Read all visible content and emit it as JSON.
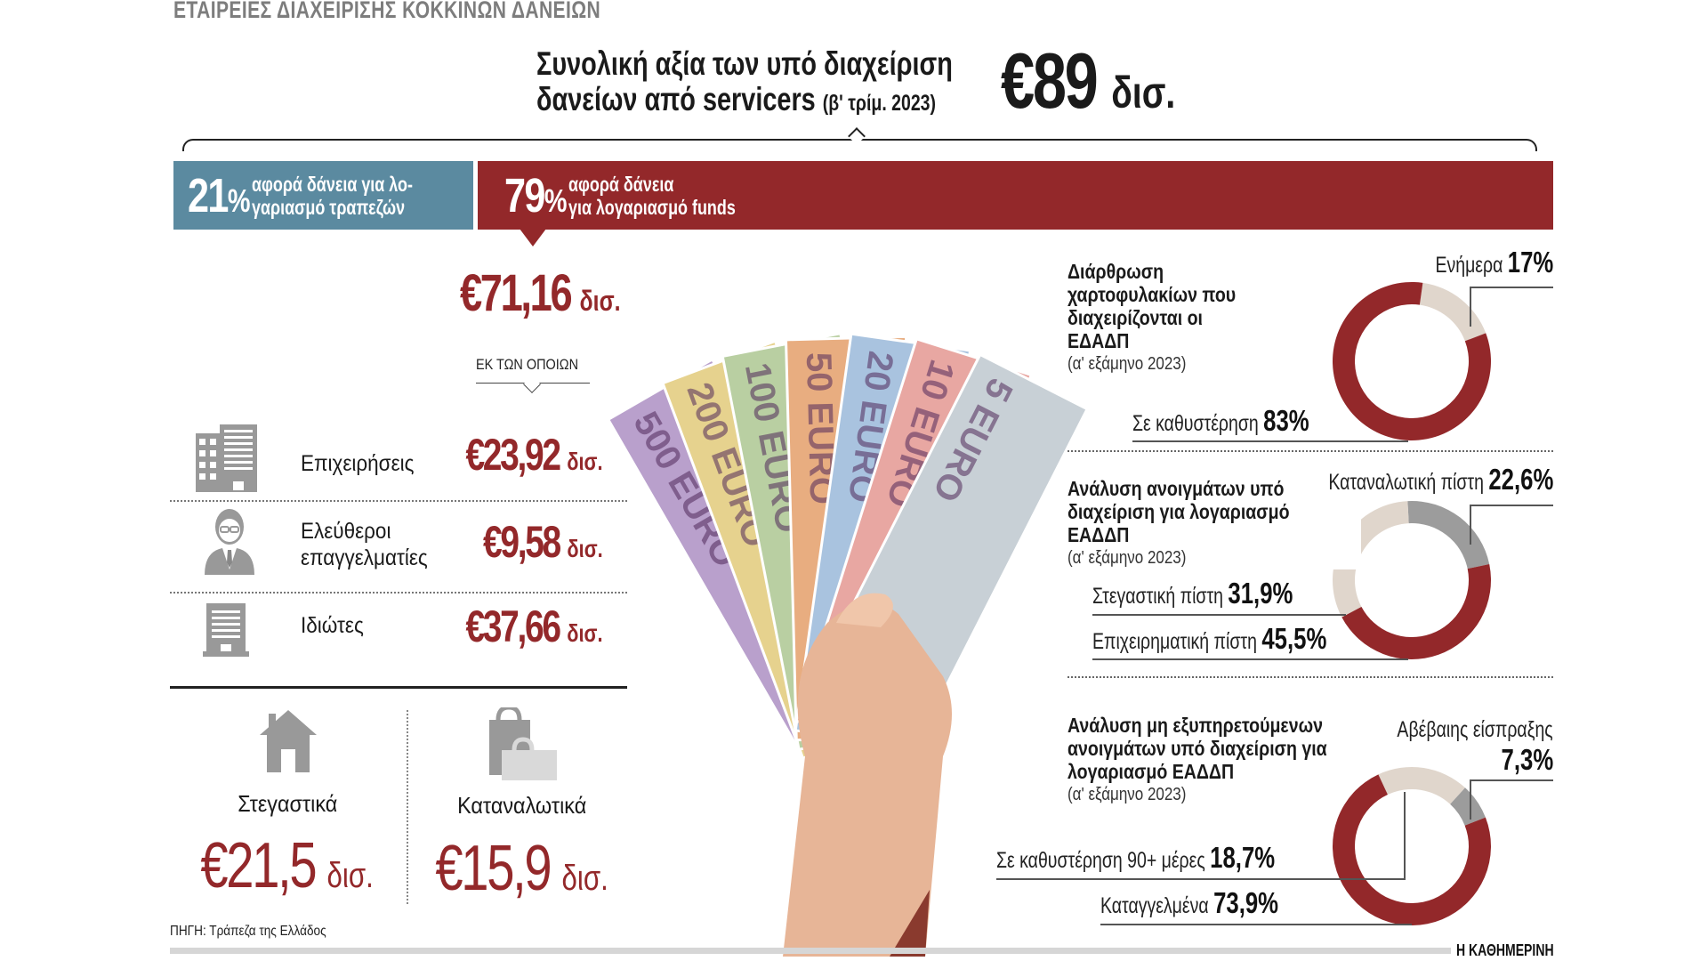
{
  "kicker": "ΕΤΑΙΡΕΙΕΣ ΔΙΑΧΕΙΡΙΣΗΣ ΚΟΚΚΙΝΩΝ ΔΑΝΕΙΩΝ",
  "headline": {
    "line1": "Συνολική αξία των υπό διαχείριση",
    "line2": "δανείων από servicers",
    "period": "(β' τρίμ. 2023)",
    "total": "€89",
    "unit": "δισ."
  },
  "split": {
    "banks": {
      "pct": "21",
      "sign": "%",
      "text1": "αφορά δάνεια για λο-",
      "text2": "γαριασμό τραπεζών"
    },
    "funds": {
      "pct": "79",
      "sign": "%",
      "text1": "αφορά δάνεια",
      "text2": "για λογαριασμό funds"
    }
  },
  "funds_total": {
    "value": "€71,16",
    "unit": "δισ."
  },
  "of_which": "ΕΚ ΤΩΝ ΟΠΟΙΩΝ",
  "breakdown": [
    {
      "icon": "office-building-icon",
      "label1": "Επιχειρήσεις",
      "label2": "",
      "value": "€23,92",
      "unit": "δισ."
    },
    {
      "icon": "professional-person-icon",
      "label1": "Ελεύθεροι",
      "label2": "επαγγελματίες",
      "value": "€9,58",
      "unit": "δισ."
    },
    {
      "icon": "apartment-building-icon",
      "label1": "Ιδιώτες",
      "label2": "",
      "value": "€37,66",
      "unit": "δισ."
    }
  ],
  "categories": [
    {
      "icon": "house-icon",
      "label": "Στεγαστικά",
      "value": "€21,5",
      "unit": "δισ."
    },
    {
      "icon": "shopping-bags-icon",
      "label": "Καταναλωτικά",
      "value": "€15,9",
      "unit": "δισ."
    }
  ],
  "banknotes": [
    "500 EURO",
    "200 EURO",
    "100 EURO",
    "50 EURO",
    "20 EURO",
    "10 EURO",
    "5 EURO"
  ],
  "source": "ΠΗΓΗ: Τράπεζα της Ελλάδος",
  "publisher": "Η ΚΑΘΗΜΕΡΙΝΗ",
  "colors": {
    "red": "#93282a",
    "blue": "#5b8aa0",
    "beige": "#e0d6cc",
    "gray": "#9c9c9c"
  },
  "chart_data": [
    {
      "type": "pie",
      "title": "Διάρθρωση χαρτοφυλακίων που διαχειρίζονται οι ΕΔΑΔΠ",
      "subtitle": "(α' εξάμηνο 2023)",
      "slices": [
        {
          "label": "Ενήμερα",
          "value": 17,
          "text": "17%",
          "color": "#e0d6cc"
        },
        {
          "label": "Σε καθυστέρηση",
          "value": 83,
          "text": "83%",
          "color": "#93282a"
        }
      ]
    },
    {
      "type": "pie",
      "title": "Ανάλυση ανοιγμάτων υπό διαχείριση για λογαριασμό ΕΑΔΔΠ",
      "subtitle": "(α' εξάμηνο 2023)",
      "slices": [
        {
          "label": "Καταναλωτική πίστη",
          "value": 22.6,
          "text": "22,6%",
          "color": "#9c9c9c"
        },
        {
          "label": "Επιχειρηματική πίστη",
          "value": 45.5,
          "text": "45,5%",
          "color": "#93282a"
        },
        {
          "label": "Στεγαστική πίστη",
          "value": 31.9,
          "text": "31,9%",
          "color": "#e0d6cc"
        }
      ]
    },
    {
      "type": "pie",
      "title": "Ανάλυση μη εξυπηρετούμενων ανοιγμάτων υπό διαχείριση για λογαριασμό ΕΑΔΔΠ",
      "subtitle": "(α' εξάμηνο 2023)",
      "slices": [
        {
          "label": "Σε καθυστέρηση 90+ μέρες",
          "value": 18.7,
          "text": "18,7%",
          "color": "#e0d6cc"
        },
        {
          "label": "Αβέβαιης είσπραξης",
          "value": 7.3,
          "text": "7,3%",
          "color": "#9c9c9c"
        },
        {
          "label": "Καταγγελμένα",
          "value": 73.9,
          "text": "73,9%",
          "color": "#93282a"
        }
      ]
    }
  ]
}
